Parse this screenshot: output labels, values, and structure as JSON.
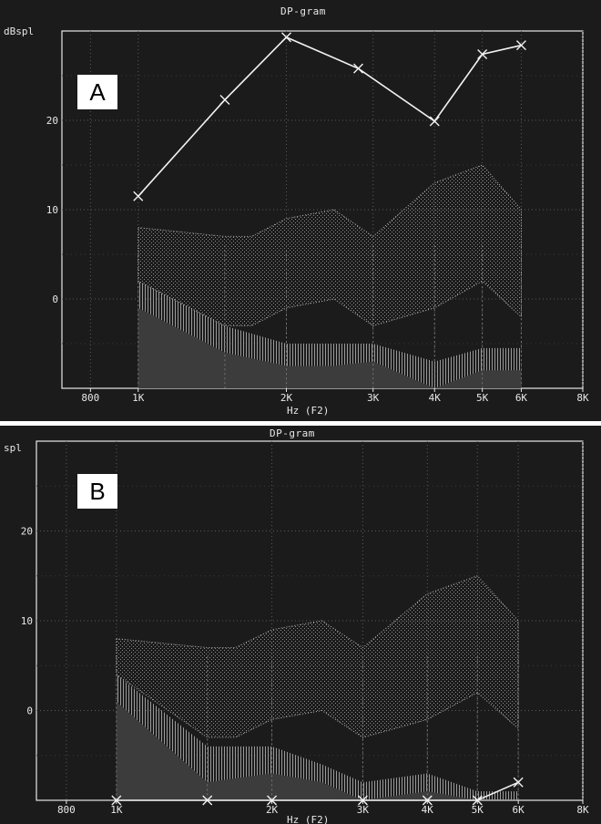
{
  "chart_data": [
    {
      "type": "line",
      "panel": "A",
      "title": "DP-gram",
      "ylabel": "dBspl",
      "xlabel": "Hz (F2)",
      "xscale": "log",
      "xlim": [
        700,
        8000
      ],
      "ylim": [
        -10,
        30
      ],
      "x_ticks": [
        {
          "v": 800,
          "label": "800"
        },
        {
          "v": 1000,
          "label": "1K"
        },
        {
          "v": 2000,
          "label": "2K"
        },
        {
          "v": 3000,
          "label": "3K"
        },
        {
          "v": 4000,
          "label": "4K"
        },
        {
          "v": 5000,
          "label": "5K"
        },
        {
          "v": 6000,
          "label": "6K"
        },
        {
          "v": 8000,
          "label": "8K"
        }
      ],
      "y_ticks": [
        {
          "v": 20,
          "label": "20"
        },
        {
          "v": 10,
          "label": "10"
        },
        {
          "v": 0,
          "label": "0"
        }
      ],
      "grid": true,
      "series": [
        {
          "x": [
            1000,
            1500,
            2000,
            2800,
            4000,
            5000,
            6000
          ],
          "y": [
            11.5,
            22.3,
            29.3,
            25.8,
            19.9,
            27.4,
            28.4
          ]
        }
      ],
      "bands": {
        "upper_band": {
          "x": [
            1000,
            1500,
            1700,
            2000,
            2500,
            3000,
            4000,
            5000,
            6000
          ],
          "hi": [
            8,
            7,
            7,
            9,
            10,
            7,
            13,
            15,
            10
          ],
          "lo": [
            2,
            -3,
            -3,
            -1,
            0,
            -3,
            -1,
            2,
            -2
          ]
        },
        "lower_band": {
          "x": [
            1000,
            1500,
            2000,
            2500,
            3000,
            4000,
            5000,
            6000
          ],
          "hi": [
            2,
            -3,
            -5,
            -5,
            -5,
            -7,
            -5.5,
            -5.5
          ],
          "lo": [
            -1,
            -6,
            -7.5,
            -7.5,
            -7,
            -10,
            -8,
            -8
          ]
        },
        "noise_floor": {
          "x": [
            1000,
            1500,
            2000,
            2500,
            3000,
            4000,
            5000,
            6000
          ],
          "y": [
            -1,
            -6,
            -7.5,
            -7.5,
            -7,
            -10,
            -8,
            -8
          ]
        }
      }
    },
    {
      "type": "line",
      "panel": "B",
      "title": "DP-gram",
      "ylabel": "spl",
      "xlabel": "Hz (F2)",
      "xscale": "log",
      "xlim": [
        700,
        8000
      ],
      "ylim": [
        -10,
        30
      ],
      "x_ticks": [
        {
          "v": 800,
          "label": "800"
        },
        {
          "v": 1000,
          "label": "1K"
        },
        {
          "v": 2000,
          "label": "2K"
        },
        {
          "v": 3000,
          "label": "3K"
        },
        {
          "v": 4000,
          "label": "4K"
        },
        {
          "v": 5000,
          "label": "5K"
        },
        {
          "v": 6000,
          "label": "6K"
        },
        {
          "v": 8000,
          "label": "8K"
        }
      ],
      "y_ticks": [
        {
          "v": 20,
          "label": "20"
        },
        {
          "v": 10,
          "label": "10"
        },
        {
          "v": 0,
          "label": "0"
        }
      ],
      "grid": true,
      "series": [
        {
          "x": [
            1000,
            1500,
            2000,
            3000,
            4000,
            5000,
            6000
          ],
          "y": [
            -10,
            -10,
            -10,
            -10,
            -10,
            -10,
            -8
          ]
        }
      ],
      "bands": {
        "upper_band": {
          "x": [
            1000,
            1500,
            1700,
            2000,
            2500,
            3000,
            4000,
            5000,
            6000
          ],
          "hi": [
            8,
            7,
            7,
            9,
            10,
            7,
            13,
            15,
            10
          ],
          "lo": [
            4,
            -3,
            -3,
            -1,
            0,
            -3,
            -1,
            2,
            -2
          ]
        },
        "lower_band": {
          "x": [
            1000,
            1500,
            2000,
            2500,
            3000,
            4000,
            5000,
            6000
          ],
          "hi": [
            4,
            -4,
            -4,
            -6,
            -8,
            -7,
            -9,
            -9
          ],
          "lo": [
            1,
            -8,
            -7,
            -8,
            -10,
            -9,
            -10,
            -10
          ]
        },
        "noise_floor": {
          "x": [
            1000,
            1500,
            2000,
            2500,
            3000,
            4000,
            5000,
            6000
          ],
          "y": [
            1,
            -8,
            -7,
            -8,
            -10,
            -9,
            -10,
            -10
          ]
        }
      }
    }
  ],
  "colors": {
    "background": "#1b1b1b",
    "axis": "#e8e8e8",
    "grid": "#5a5a5a",
    "series": "#f2f2f2",
    "upper_band": "#8c8c8c",
    "lower_band": "#9a9a9a",
    "noise_floor": "#3c3c3c"
  }
}
